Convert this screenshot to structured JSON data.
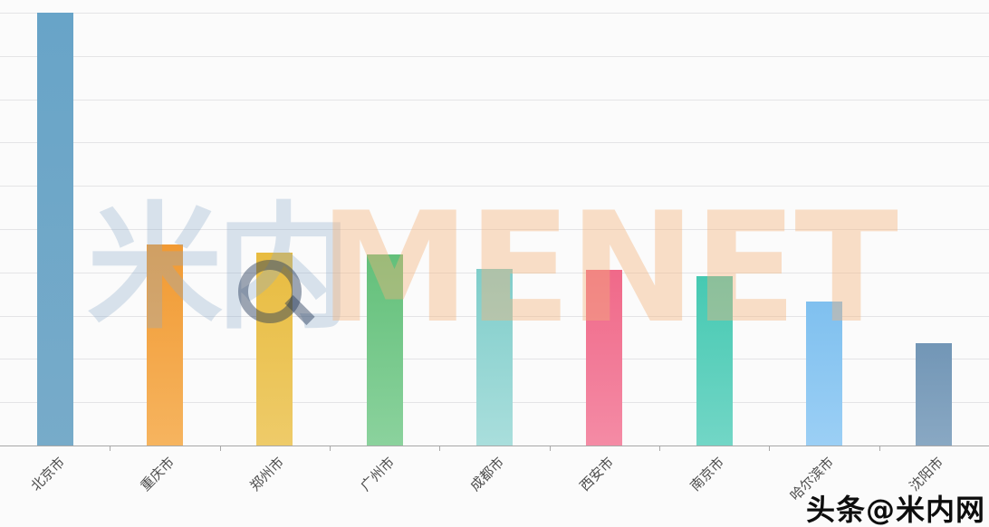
{
  "chart_data": {
    "type": "bar",
    "title": "",
    "xlabel": "",
    "ylabel": "",
    "categories": [
      "北京市",
      "重庆市",
      "郑州市",
      "广州市",
      "成都市",
      "西安市",
      "南京市",
      "哈尔滨市",
      "沈阳市"
    ],
    "values": [
      10,
      4.64,
      4.46,
      4.41,
      4.08,
      4.06,
      3.91,
      3.33,
      2.36
    ],
    "ylim": [
      0,
      10
    ],
    "gridlines": 10,
    "grid": true,
    "legend": "none",
    "y_axis_tick_labels_visible": false,
    "x_label_rotation_deg": 45,
    "bar_colors": [
      {
        "top": "#68a4c8",
        "bottom": "#77abc9"
      },
      {
        "top": "#f19a33",
        "bottom": "#f6b45f"
      },
      {
        "top": "#e8bc40",
        "bottom": "#eecb69"
      },
      {
        "top": "#63c07a",
        "bottom": "#8bd29d"
      },
      {
        "top": "#7fcdca",
        "bottom": "#a9dedc"
      },
      {
        "top": "#f06989",
        "bottom": "#f48ba5"
      },
      {
        "top": "#46c9b2",
        "bottom": "#72d6c6"
      },
      {
        "top": "#7fc0ef",
        "bottom": "#9bcff5"
      },
      {
        "top": "#7296b6",
        "bottom": "#89a8c3"
      }
    ]
  },
  "watermark": {
    "cn": "米内",
    "en": "MENET"
  },
  "credit": {
    "text": "头条@米内网"
  }
}
